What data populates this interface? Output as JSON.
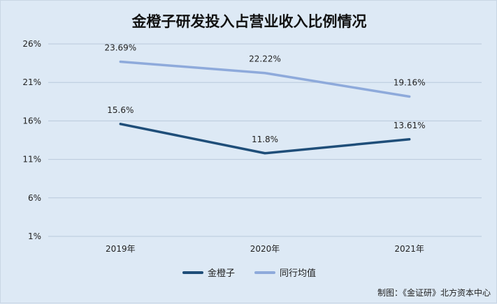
{
  "chart_data": {
    "type": "line",
    "title": "金橙子研发投入占营业收入比例情况",
    "xlabel": "",
    "ylabel": "",
    "categories": [
      "2019年",
      "2020年",
      "2021年"
    ],
    "yticks": [
      "1%",
      "6%",
      "11%",
      "16%",
      "21%",
      "26%"
    ],
    "ylim": [
      1,
      26
    ],
    "grid": true,
    "legend_position": "bottom",
    "series": [
      {
        "name": "金橙子",
        "values": [
          15.6,
          11.8,
          13.61
        ],
        "labels": [
          "15.6%",
          "11.8%",
          "13.61%"
        ],
        "color": "#1f4e79"
      },
      {
        "name": "同行均值",
        "values": [
          23.69,
          22.22,
          19.16
        ],
        "labels": [
          "23.69%",
          "22.22%",
          "19.16%"
        ],
        "color": "#8eaadb"
      }
    ]
  },
  "credit": "制图：《金证研》北方资本中心"
}
